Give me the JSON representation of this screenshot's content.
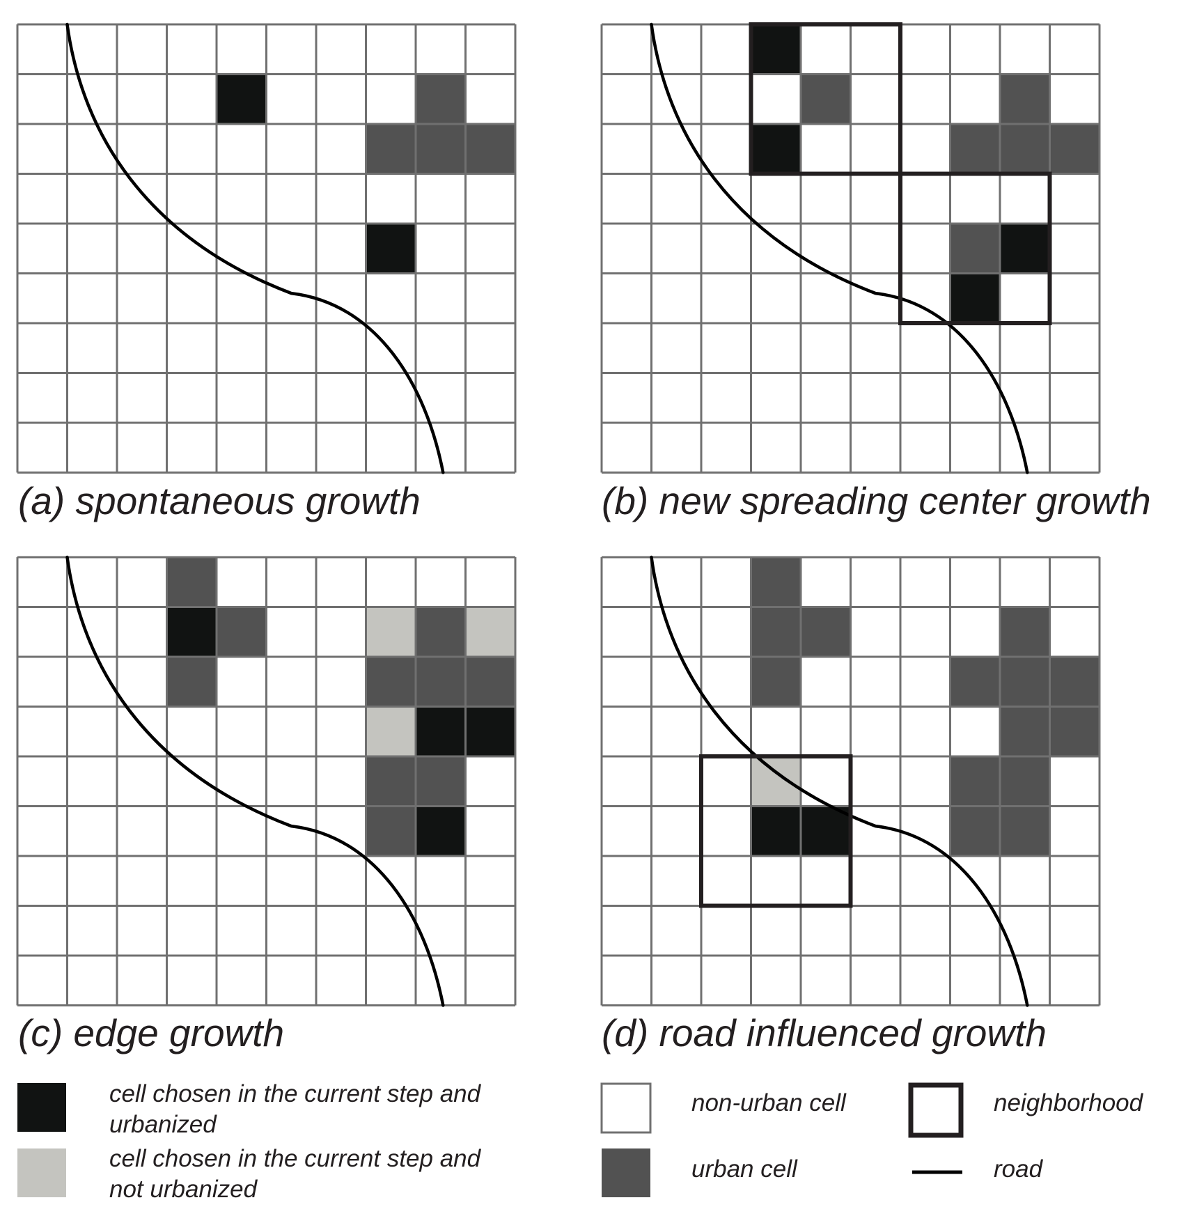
{
  "colors": {
    "chosen_urbanized": "#111312",
    "chosen_not_urbanized": "#c4c4bf",
    "urban": "#525252",
    "non_urban": "#ffffff",
    "grid_line": "#707070",
    "road": "#000000",
    "neighborhood": "#231f20"
  },
  "grid": {
    "rows": 9,
    "cols": 10
  },
  "panels": [
    {
      "id": "a",
      "caption": "(a) spontaneous growth",
      "cells": [
        {
          "row": 1,
          "col": 4,
          "state": "chosen_urbanized"
        },
        {
          "row": 1,
          "col": 8,
          "state": "urban"
        },
        {
          "row": 2,
          "col": 7,
          "state": "urban"
        },
        {
          "row": 2,
          "col": 8,
          "state": "urban"
        },
        {
          "row": 2,
          "col": 9,
          "state": "urban"
        },
        {
          "row": 4,
          "col": 7,
          "state": "chosen_urbanized"
        }
      ],
      "neighborhoods": []
    },
    {
      "id": "b",
      "caption": "(b) new spreading center growth",
      "cells": [
        {
          "row": 0,
          "col": 3,
          "state": "chosen_urbanized"
        },
        {
          "row": 1,
          "col": 4,
          "state": "urban"
        },
        {
          "row": 2,
          "col": 3,
          "state": "chosen_urbanized"
        },
        {
          "row": 1,
          "col": 8,
          "state": "urban"
        },
        {
          "row": 2,
          "col": 7,
          "state": "urban"
        },
        {
          "row": 2,
          "col": 8,
          "state": "urban"
        },
        {
          "row": 2,
          "col": 9,
          "state": "urban"
        },
        {
          "row": 4,
          "col": 7,
          "state": "urban"
        },
        {
          "row": 4,
          "col": 8,
          "state": "chosen_urbanized"
        },
        {
          "row": 5,
          "col": 7,
          "state": "chosen_urbanized"
        }
      ],
      "neighborhoods": [
        {
          "row": 0,
          "col": 3,
          "rows": 3,
          "cols": 3
        },
        {
          "row": 3,
          "col": 6,
          "rows": 3,
          "cols": 3
        }
      ]
    },
    {
      "id": "c",
      "caption": "(c) edge growth",
      "cells": [
        {
          "row": 0,
          "col": 3,
          "state": "urban"
        },
        {
          "row": 1,
          "col": 3,
          "state": "chosen_urbanized"
        },
        {
          "row": 1,
          "col": 4,
          "state": "urban"
        },
        {
          "row": 2,
          "col": 3,
          "state": "urban"
        },
        {
          "row": 1,
          "col": 7,
          "state": "chosen_not_urbanized"
        },
        {
          "row": 1,
          "col": 8,
          "state": "urban"
        },
        {
          "row": 1,
          "col": 9,
          "state": "chosen_not_urbanized"
        },
        {
          "row": 2,
          "col": 7,
          "state": "urban"
        },
        {
          "row": 2,
          "col": 8,
          "state": "urban"
        },
        {
          "row": 2,
          "col": 9,
          "state": "urban"
        },
        {
          "row": 3,
          "col": 7,
          "state": "chosen_not_urbanized"
        },
        {
          "row": 3,
          "col": 8,
          "state": "chosen_urbanized"
        },
        {
          "row": 3,
          "col": 9,
          "state": "chosen_urbanized"
        },
        {
          "row": 4,
          "col": 7,
          "state": "urban"
        },
        {
          "row": 4,
          "col": 8,
          "state": "urban"
        },
        {
          "row": 5,
          "col": 7,
          "state": "urban"
        },
        {
          "row": 5,
          "col": 8,
          "state": "chosen_urbanized"
        }
      ],
      "neighborhoods": []
    },
    {
      "id": "d",
      "caption": "(d) road influenced growth",
      "cells": [
        {
          "row": 0,
          "col": 3,
          "state": "urban"
        },
        {
          "row": 1,
          "col": 3,
          "state": "urban"
        },
        {
          "row": 1,
          "col": 4,
          "state": "urban"
        },
        {
          "row": 2,
          "col": 3,
          "state": "urban"
        },
        {
          "row": 1,
          "col": 8,
          "state": "urban"
        },
        {
          "row": 2,
          "col": 7,
          "state": "urban"
        },
        {
          "row": 2,
          "col": 8,
          "state": "urban"
        },
        {
          "row": 2,
          "col": 9,
          "state": "urban"
        },
        {
          "row": 3,
          "col": 8,
          "state": "urban"
        },
        {
          "row": 3,
          "col": 9,
          "state": "urban"
        },
        {
          "row": 4,
          "col": 7,
          "state": "urban"
        },
        {
          "row": 4,
          "col": 8,
          "state": "urban"
        },
        {
          "row": 5,
          "col": 7,
          "state": "urban"
        },
        {
          "row": 5,
          "col": 8,
          "state": "urban"
        },
        {
          "row": 4,
          "col": 3,
          "state": "chosen_not_urbanized"
        },
        {
          "row": 5,
          "col": 3,
          "state": "chosen_urbanized"
        },
        {
          "row": 5,
          "col": 4,
          "state": "chosen_urbanized"
        }
      ],
      "neighborhoods": [
        {
          "row": 4,
          "col": 2,
          "rows": 3,
          "cols": 3
        }
      ]
    }
  ],
  "legend": {
    "chosen_urbanized": {
      "line1": "cell chosen in the current step and",
      "line2": "urbanized"
    },
    "chosen_not_urbanized": {
      "line1": "cell chosen in the current step and",
      "line2": "not urbanized"
    },
    "non_urban": "non-urban cell",
    "urban": "urban cell",
    "neighborhood": "neighborhood",
    "road": "road"
  }
}
